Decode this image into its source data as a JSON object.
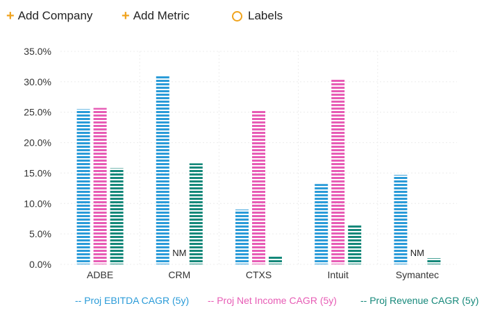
{
  "toolbar": {
    "add_company": "Add Company",
    "add_metric": "Add Metric",
    "labels": "Labels",
    "accent_color": "#f0a31d"
  },
  "chart_data": {
    "type": "bar",
    "categories": [
      "ADBE",
      "CRM",
      "CTXS",
      "Intuit",
      "Symantec"
    ],
    "series": [
      {
        "name": "-- Proj EBITDA CAGR (5y)",
        "color": "#2a9bd8",
        "values": [
          25.5,
          31.0,
          9.0,
          13.2,
          14.7
        ]
      },
      {
        "name": "-- Proj Net Income CAGR (5y)",
        "color": "#e75cb5",
        "values": [
          25.7,
          null,
          25.2,
          30.5,
          null
        ]
      },
      {
        "name": "-- Proj Revenue CAGR (5y)",
        "color": "#15887a",
        "values": [
          15.8,
          16.6,
          1.3,
          6.5,
          1.0
        ]
      }
    ],
    "null_label": "NM",
    "ylim": [
      0,
      35
    ],
    "yticks": [
      "0.0%",
      "5.0%",
      "10.0%",
      "15.0%",
      "20.0%",
      "25.0%",
      "30.0%",
      "35.0%"
    ],
    "grid": true,
    "legend_position": "bottom"
  }
}
